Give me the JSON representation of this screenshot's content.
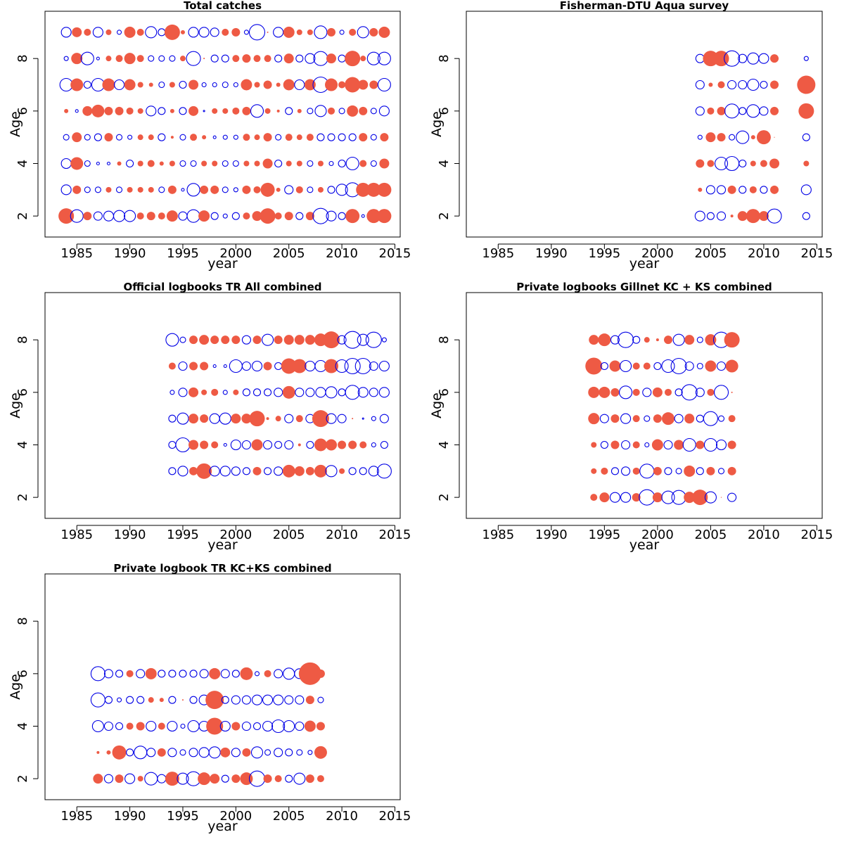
{
  "figure": {
    "x_axis_label": "year",
    "y_axis_label": "Age",
    "colors": {
      "positive": "#ee5a44",
      "negative": "#0000e6",
      "frame": "#000000"
    }
  },
  "chart_data": [
    {
      "type": "scatter",
      "title": "Total catches",
      "xlabel": "year",
      "ylabel": "Age",
      "xlim": [
        1982,
        2015.5
      ],
      "ylim": [
        1.2,
        9.8
      ],
      "xticks": [
        "1985",
        "1990",
        "1995",
        "2000",
        "2005",
        "2010",
        "2015"
      ],
      "yticks": [
        "2",
        "4",
        "6",
        "8"
      ],
      "series_encoding": "bubble: radius = |residual|, filled red = positive, open blue = negative",
      "years": [
        1984,
        1985,
        1986,
        1987,
        1988,
        1989,
        1990,
        1991,
        1992,
        1993,
        1994,
        1995,
        1996,
        1997,
        1998,
        1999,
        2000,
        2001,
        2002,
        2003,
        2004,
        2005,
        2006,
        2007,
        2008,
        2009,
        2010,
        2011,
        2012,
        2013,
        2014
      ],
      "ages": [
        2,
        3,
        4,
        5,
        6,
        7,
        8,
        9
      ],
      "residuals": {
        "2": [
          11,
          -9,
          6,
          -6,
          -7,
          -8,
          -8,
          5,
          6,
          5,
          8,
          -6,
          -9,
          8,
          -5,
          -3,
          -5,
          5,
          7,
          11,
          5,
          6,
          -5,
          6,
          -11,
          -7,
          -5,
          10,
          -2,
          10,
          10
        ],
        "3": [
          -7,
          6,
          -4,
          -4,
          4,
          -4,
          4,
          4,
          4,
          -4,
          6,
          -2,
          -9,
          6,
          6,
          -4,
          -3,
          6,
          5,
          10,
          3,
          -6,
          5,
          -4,
          4,
          -5,
          -8,
          -10,
          10,
          10,
          10
        ],
        "4": [
          -7,
          9,
          -4,
          -2,
          -2,
          3,
          -5,
          4,
          5,
          3,
          4,
          -4,
          -4,
          4,
          4,
          -4,
          -4,
          4,
          4,
          7,
          -5,
          4,
          4,
          -4,
          4,
          -3,
          -5,
          -9,
          5,
          -4,
          7
        ],
        "5": [
          -4,
          7,
          -4,
          -5,
          6,
          -4,
          -3,
          4,
          4,
          -5,
          2,
          -4,
          5,
          3,
          -2,
          -3,
          -3,
          5,
          4,
          6,
          -4,
          5,
          4,
          5,
          -5,
          -5,
          -5,
          -5,
          6,
          -4,
          6
        ],
        "6": [
          3,
          -2,
          7,
          9,
          6,
          6,
          5,
          4,
          -7,
          -5,
          3,
          -5,
          7,
          -1,
          4,
          4,
          5,
          6,
          -9,
          4,
          2,
          -5,
          3,
          -4,
          -8,
          5,
          -4,
          8,
          6,
          -4,
          -7
        ],
        "7": [
          -9,
          9,
          -5,
          -9,
          9,
          -7,
          8,
          4,
          3,
          -4,
          4,
          -5,
          7,
          -3,
          -3,
          -4,
          -3,
          8,
          4,
          6,
          3,
          8,
          -7,
          8,
          -11,
          9,
          5,
          11,
          7,
          6,
          -9
        ],
        "8": [
          -3,
          8,
          -9,
          -2,
          4,
          5,
          8,
          5,
          -4,
          -4,
          -4,
          4,
          -10,
          1,
          -5,
          -5,
          5,
          6,
          5,
          5,
          -5,
          7,
          -5,
          -7,
          -10,
          7,
          -5,
          11,
          4,
          -9,
          -9
        ],
        "9": [
          -7,
          7,
          5,
          -7,
          4,
          -3,
          8,
          5,
          -8,
          -5,
          11,
          3,
          -7,
          -7,
          -6,
          5,
          6,
          -3,
          -11,
          1,
          -7,
          8,
          4,
          4,
          -9,
          6,
          -3,
          5,
          -8,
          6,
          8
        ]
      }
    },
    {
      "type": "scatter",
      "title": "Fisherman-DTU Aqua survey",
      "xlabel": "year",
      "ylabel": "Age",
      "xlim": [
        1982,
        2015.5
      ],
      "ylim": [
        1.2,
        9.8
      ],
      "xticks": [
        "1985",
        "1990",
        "1995",
        "2000",
        "2005",
        "2010",
        "2015"
      ],
      "yticks": [
        "2",
        "4",
        "6",
        "8"
      ],
      "series_encoding": "bubble: radius = |residual|, filled red = positive, open blue = negative",
      "years": [
        2004,
        2005,
        2006,
        2007,
        2008,
        2009,
        2010,
        2011,
        2014
      ],
      "ages": [
        2,
        3,
        4,
        5,
        6,
        7,
        8
      ],
      "residuals": {
        "2": [
          -7,
          -5,
          -6,
          2,
          7,
          10,
          7,
          -10,
          -5
        ],
        "3": [
          3,
          -6,
          -6,
          6,
          -5,
          5,
          -5,
          6,
          -7
        ],
        "4": [
          6,
          5,
          -9,
          -10,
          -5,
          4,
          5,
          7,
          4
        ],
        "5": [
          -3,
          7,
          6,
          -4,
          -9,
          3,
          10,
          0,
          -5
        ],
        "6": [
          -6,
          5,
          6,
          -10,
          -5,
          -9,
          -6,
          6,
          11
        ],
        "7": [
          -6,
          3,
          5,
          -6,
          -6,
          -8,
          -5,
          6,
          13
        ],
        "8": [
          -6,
          11,
          11,
          -11,
          -6,
          -8,
          -7,
          6,
          -3
        ]
      }
    },
    {
      "type": "scatter",
      "title": "Official logbooks TR All combined",
      "xlabel": "year",
      "ylabel": "Age",
      "xlim": [
        1982,
        2015.5
      ],
      "ylim": [
        1.2,
        9.8
      ],
      "xticks": [
        "1985",
        "1990",
        "1995",
        "2000",
        "2005",
        "2010",
        "2015"
      ],
      "yticks": [
        "2",
        "4",
        "6",
        "8"
      ],
      "series_encoding": "bubble: radius = |residual|, filled red = positive, open blue = negative",
      "years": [
        1994,
        1995,
        1996,
        1997,
        1998,
        1999,
        2000,
        2001,
        2002,
        2003,
        2004,
        2005,
        2006,
        2007,
        2008,
        2009,
        2010,
        2011,
        2012,
        2013,
        2014
      ],
      "ages": [
        3,
        4,
        5,
        6,
        7,
        8
      ],
      "residuals": {
        "3": [
          -5,
          -7,
          6,
          11,
          -7,
          -7,
          -6,
          -5,
          6,
          -5,
          -6,
          9,
          7,
          6,
          9,
          -8,
          4,
          -5,
          -5,
          -7,
          -10
        ],
        "4": [
          -5,
          -10,
          7,
          6,
          5,
          -2,
          -7,
          -6,
          8,
          -6,
          -5,
          -6,
          2,
          -5,
          9,
          8,
          6,
          6,
          5,
          -3,
          -5
        ],
        "5": [
          -5,
          -8,
          7,
          6,
          -7,
          -8,
          7,
          7,
          11,
          2,
          4,
          -6,
          5,
          -6,
          12,
          -7,
          -6,
          1,
          -1,
          -3,
          -6
        ],
        "6": [
          -3,
          -6,
          7,
          4,
          5,
          -3,
          4,
          -5,
          -5,
          -5,
          -6,
          9,
          -6,
          -6,
          -7,
          -8,
          -5,
          -10,
          -7,
          -6,
          -7
        ],
        "7": [
          5,
          -6,
          6,
          6,
          -2,
          -2,
          -9,
          -6,
          -7,
          6,
          -5,
          11,
          10,
          -7,
          -8,
          10,
          -9,
          -11,
          -11,
          -6,
          -7
        ],
        "8": [
          -9,
          -4,
          6,
          7,
          6,
          6,
          6,
          -6,
          6,
          -8,
          6,
          7,
          7,
          7,
          9,
          12,
          -6,
          -12,
          -8,
          -11,
          -3
        ]
      }
    },
    {
      "type": "scatter",
      "title": "Private logbooks Gillnet KC + KS combined",
      "xlabel": "year",
      "ylabel": "Age",
      "xlim": [
        1982,
        2015.5
      ],
      "ylim": [
        1.2,
        9.8
      ],
      "xticks": [
        "1985",
        "1990",
        "1995",
        "2000",
        "2005",
        "2010",
        "2015"
      ],
      "yticks": [
        "2",
        "4",
        "6",
        "8"
      ],
      "series_encoding": "bubble: radius = |residual|, filled red = positive, open blue = negative",
      "years": [
        1994,
        1995,
        1996,
        1997,
        1998,
        1999,
        2000,
        2001,
        2002,
        2003,
        2004,
        2005,
        2006,
        2007
      ],
      "ages": [
        2,
        3,
        4,
        5,
        6,
        7,
        8
      ],
      "residuals": {
        "2": [
          5,
          7,
          -7,
          -7,
          6,
          -11,
          7,
          -9,
          -10,
          8,
          11,
          -8,
          0,
          -6
        ],
        "3": [
          4,
          5,
          -5,
          -6,
          5,
          -10,
          6,
          -5,
          -4,
          8,
          -5,
          6,
          -4,
          6
        ],
        "4": [
          4,
          -5,
          6,
          -6,
          5,
          -3,
          8,
          -6,
          7,
          -9,
          6,
          -9,
          -7,
          6
        ],
        "5": [
          8,
          -6,
          6,
          -7,
          5,
          -4,
          6,
          9,
          -6,
          7,
          -5,
          -10,
          -4,
          5
        ],
        "6": [
          8,
          8,
          6,
          -9,
          5,
          -6,
          7,
          5,
          -5,
          -11,
          -6,
          5,
          -10,
          1
        ],
        "7": [
          12,
          -5,
          8,
          -8,
          5,
          5,
          -5,
          -9,
          -11,
          -6,
          -4,
          8,
          -6,
          9
        ],
        "8": [
          7,
          9,
          -6,
          -11,
          -5,
          4,
          2,
          6,
          -8,
          7,
          -4,
          8,
          -11,
          11
        ]
      }
    },
    {
      "type": "scatter",
      "title": "Private logbook TR KC+KS combined",
      "xlabel": "year",
      "ylabel": "Age",
      "xlim": [
        1982,
        2015.5
      ],
      "ylim": [
        1.2,
        9.8
      ],
      "xticks": [
        "1985",
        "1990",
        "1995",
        "2000",
        "2005",
        "2010",
        "2015"
      ],
      "yticks": [
        "2",
        "4",
        "6",
        "8"
      ],
      "series_encoding": "bubble: radius = |residual|, filled red = positive, open blue = negative",
      "years": [
        1987,
        1988,
        1989,
        1990,
        1991,
        1992,
        1993,
        1994,
        1995,
        1996,
        1997,
        1998,
        1999,
        2000,
        2001,
        2002,
        2003,
        2004,
        2005,
        2006,
        2007,
        2008
      ],
      "ages": [
        2,
        3,
        4,
        5,
        6
      ],
      "residuals": {
        "2": [
          7,
          -6,
          6,
          -7,
          4,
          -9,
          -6,
          10,
          -8,
          -10,
          9,
          7,
          -5,
          6,
          9,
          -11,
          6,
          5,
          -5,
          -8,
          6,
          5
        ],
        "3": [
          2,
          3,
          10,
          -5,
          -9,
          -6,
          6,
          -6,
          -4,
          -6,
          -7,
          -8,
          7,
          -6,
          6,
          -8,
          -4,
          -6,
          -5,
          -4,
          -3,
          9
        ],
        "4": [
          -8,
          -6,
          -5,
          5,
          6,
          -7,
          5,
          -7,
          -3,
          -8,
          -7,
          12,
          -7,
          6,
          -6,
          -5,
          -7,
          -9,
          -8,
          -6,
          8,
          6
        ],
        "5": [
          -10,
          -5,
          -3,
          -5,
          -5,
          4,
          3,
          -5,
          1,
          -5,
          -7,
          13,
          -5,
          -6,
          -6,
          -7,
          -7,
          -7,
          -6,
          -6,
          6,
          -4
        ],
        "6": [
          -10,
          -6,
          -5,
          5,
          -6,
          8,
          -5,
          -5,
          -5,
          -5,
          -6,
          8,
          -6,
          -5,
          9,
          -3,
          5,
          -6,
          -8,
          -7,
          16,
          6
        ]
      }
    }
  ]
}
